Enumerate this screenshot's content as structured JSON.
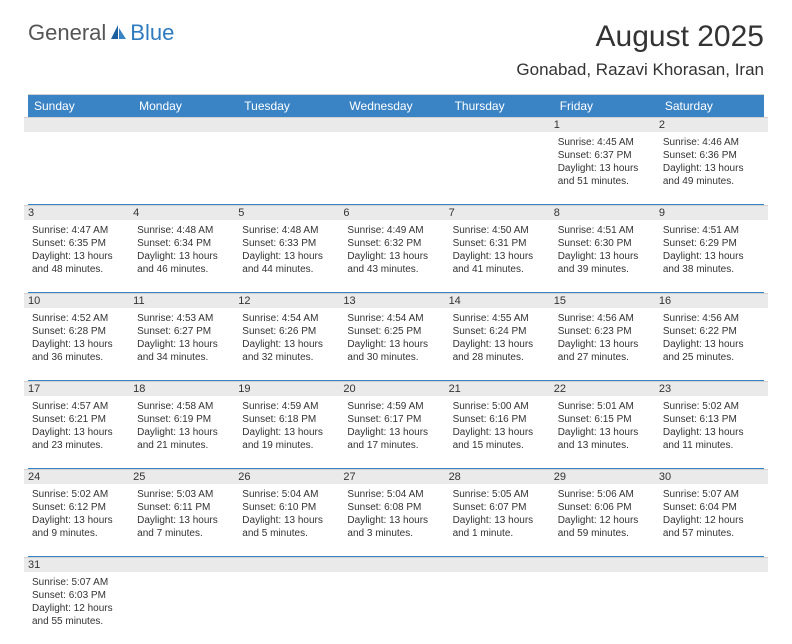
{
  "styling": {
    "accent_color": "#3a83c5",
    "header_bg": "#3a83c5",
    "header_text_color": "#ffffff",
    "daynum_bg": "#eaeaea",
    "body_text_color": "#333333",
    "border_color": "#d0d0d0",
    "logo_gray": "#555555",
    "logo_blue": "#2f7bbf",
    "page_bg": "#ffffff",
    "month_fontsize": 30,
    "location_fontsize": 17,
    "header_fontsize": 12,
    "cell_fontsize": 10,
    "daynum_fontsize": 11,
    "columns": 7
  },
  "logo": {
    "part1": "General",
    "part2": "Blue"
  },
  "month": "August 2025",
  "location": "Gonabad, Razavi Khorasan, Iran",
  "day_names": [
    "Sunday",
    "Monday",
    "Tuesday",
    "Wednesday",
    "Thursday",
    "Friday",
    "Saturday"
  ],
  "weeks": [
    [
      null,
      null,
      null,
      null,
      null,
      {
        "n": "1",
        "sr": "Sunrise: 4:45 AM",
        "ss": "Sunset: 6:37 PM",
        "d1": "Daylight: 13 hours",
        "d2": "and 51 minutes."
      },
      {
        "n": "2",
        "sr": "Sunrise: 4:46 AM",
        "ss": "Sunset: 6:36 PM",
        "d1": "Daylight: 13 hours",
        "d2": "and 49 minutes."
      }
    ],
    [
      {
        "n": "3",
        "sr": "Sunrise: 4:47 AM",
        "ss": "Sunset: 6:35 PM",
        "d1": "Daylight: 13 hours",
        "d2": "and 48 minutes."
      },
      {
        "n": "4",
        "sr": "Sunrise: 4:48 AM",
        "ss": "Sunset: 6:34 PM",
        "d1": "Daylight: 13 hours",
        "d2": "and 46 minutes."
      },
      {
        "n": "5",
        "sr": "Sunrise: 4:48 AM",
        "ss": "Sunset: 6:33 PM",
        "d1": "Daylight: 13 hours",
        "d2": "and 44 minutes."
      },
      {
        "n": "6",
        "sr": "Sunrise: 4:49 AM",
        "ss": "Sunset: 6:32 PM",
        "d1": "Daylight: 13 hours",
        "d2": "and 43 minutes."
      },
      {
        "n": "7",
        "sr": "Sunrise: 4:50 AM",
        "ss": "Sunset: 6:31 PM",
        "d1": "Daylight: 13 hours",
        "d2": "and 41 minutes."
      },
      {
        "n": "8",
        "sr": "Sunrise: 4:51 AM",
        "ss": "Sunset: 6:30 PM",
        "d1": "Daylight: 13 hours",
        "d2": "and 39 minutes."
      },
      {
        "n": "9",
        "sr": "Sunrise: 4:51 AM",
        "ss": "Sunset: 6:29 PM",
        "d1": "Daylight: 13 hours",
        "d2": "and 38 minutes."
      }
    ],
    [
      {
        "n": "10",
        "sr": "Sunrise: 4:52 AM",
        "ss": "Sunset: 6:28 PM",
        "d1": "Daylight: 13 hours",
        "d2": "and 36 minutes."
      },
      {
        "n": "11",
        "sr": "Sunrise: 4:53 AM",
        "ss": "Sunset: 6:27 PM",
        "d1": "Daylight: 13 hours",
        "d2": "and 34 minutes."
      },
      {
        "n": "12",
        "sr": "Sunrise: 4:54 AM",
        "ss": "Sunset: 6:26 PM",
        "d1": "Daylight: 13 hours",
        "d2": "and 32 minutes."
      },
      {
        "n": "13",
        "sr": "Sunrise: 4:54 AM",
        "ss": "Sunset: 6:25 PM",
        "d1": "Daylight: 13 hours",
        "d2": "and 30 minutes."
      },
      {
        "n": "14",
        "sr": "Sunrise: 4:55 AM",
        "ss": "Sunset: 6:24 PM",
        "d1": "Daylight: 13 hours",
        "d2": "and 28 minutes."
      },
      {
        "n": "15",
        "sr": "Sunrise: 4:56 AM",
        "ss": "Sunset: 6:23 PM",
        "d1": "Daylight: 13 hours",
        "d2": "and 27 minutes."
      },
      {
        "n": "16",
        "sr": "Sunrise: 4:56 AM",
        "ss": "Sunset: 6:22 PM",
        "d1": "Daylight: 13 hours",
        "d2": "and 25 minutes."
      }
    ],
    [
      {
        "n": "17",
        "sr": "Sunrise: 4:57 AM",
        "ss": "Sunset: 6:21 PM",
        "d1": "Daylight: 13 hours",
        "d2": "and 23 minutes."
      },
      {
        "n": "18",
        "sr": "Sunrise: 4:58 AM",
        "ss": "Sunset: 6:19 PM",
        "d1": "Daylight: 13 hours",
        "d2": "and 21 minutes."
      },
      {
        "n": "19",
        "sr": "Sunrise: 4:59 AM",
        "ss": "Sunset: 6:18 PM",
        "d1": "Daylight: 13 hours",
        "d2": "and 19 minutes."
      },
      {
        "n": "20",
        "sr": "Sunrise: 4:59 AM",
        "ss": "Sunset: 6:17 PM",
        "d1": "Daylight: 13 hours",
        "d2": "and 17 minutes."
      },
      {
        "n": "21",
        "sr": "Sunrise: 5:00 AM",
        "ss": "Sunset: 6:16 PM",
        "d1": "Daylight: 13 hours",
        "d2": "and 15 minutes."
      },
      {
        "n": "22",
        "sr": "Sunrise: 5:01 AM",
        "ss": "Sunset: 6:15 PM",
        "d1": "Daylight: 13 hours",
        "d2": "and 13 minutes."
      },
      {
        "n": "23",
        "sr": "Sunrise: 5:02 AM",
        "ss": "Sunset: 6:13 PM",
        "d1": "Daylight: 13 hours",
        "d2": "and 11 minutes."
      }
    ],
    [
      {
        "n": "24",
        "sr": "Sunrise: 5:02 AM",
        "ss": "Sunset: 6:12 PM",
        "d1": "Daylight: 13 hours",
        "d2": "and 9 minutes."
      },
      {
        "n": "25",
        "sr": "Sunrise: 5:03 AM",
        "ss": "Sunset: 6:11 PM",
        "d1": "Daylight: 13 hours",
        "d2": "and 7 minutes."
      },
      {
        "n": "26",
        "sr": "Sunrise: 5:04 AM",
        "ss": "Sunset: 6:10 PM",
        "d1": "Daylight: 13 hours",
        "d2": "and 5 minutes."
      },
      {
        "n": "27",
        "sr": "Sunrise: 5:04 AM",
        "ss": "Sunset: 6:08 PM",
        "d1": "Daylight: 13 hours",
        "d2": "and 3 minutes."
      },
      {
        "n": "28",
        "sr": "Sunrise: 5:05 AM",
        "ss": "Sunset: 6:07 PM",
        "d1": "Daylight: 13 hours",
        "d2": "and 1 minute."
      },
      {
        "n": "29",
        "sr": "Sunrise: 5:06 AM",
        "ss": "Sunset: 6:06 PM",
        "d1": "Daylight: 12 hours",
        "d2": "and 59 minutes."
      },
      {
        "n": "30",
        "sr": "Sunrise: 5:07 AM",
        "ss": "Sunset: 6:04 PM",
        "d1": "Daylight: 12 hours",
        "d2": "and 57 minutes."
      }
    ],
    [
      {
        "n": "31",
        "sr": "Sunrise: 5:07 AM",
        "ss": "Sunset: 6:03 PM",
        "d1": "Daylight: 12 hours",
        "d2": "and 55 minutes."
      },
      null,
      null,
      null,
      null,
      null,
      null
    ]
  ]
}
